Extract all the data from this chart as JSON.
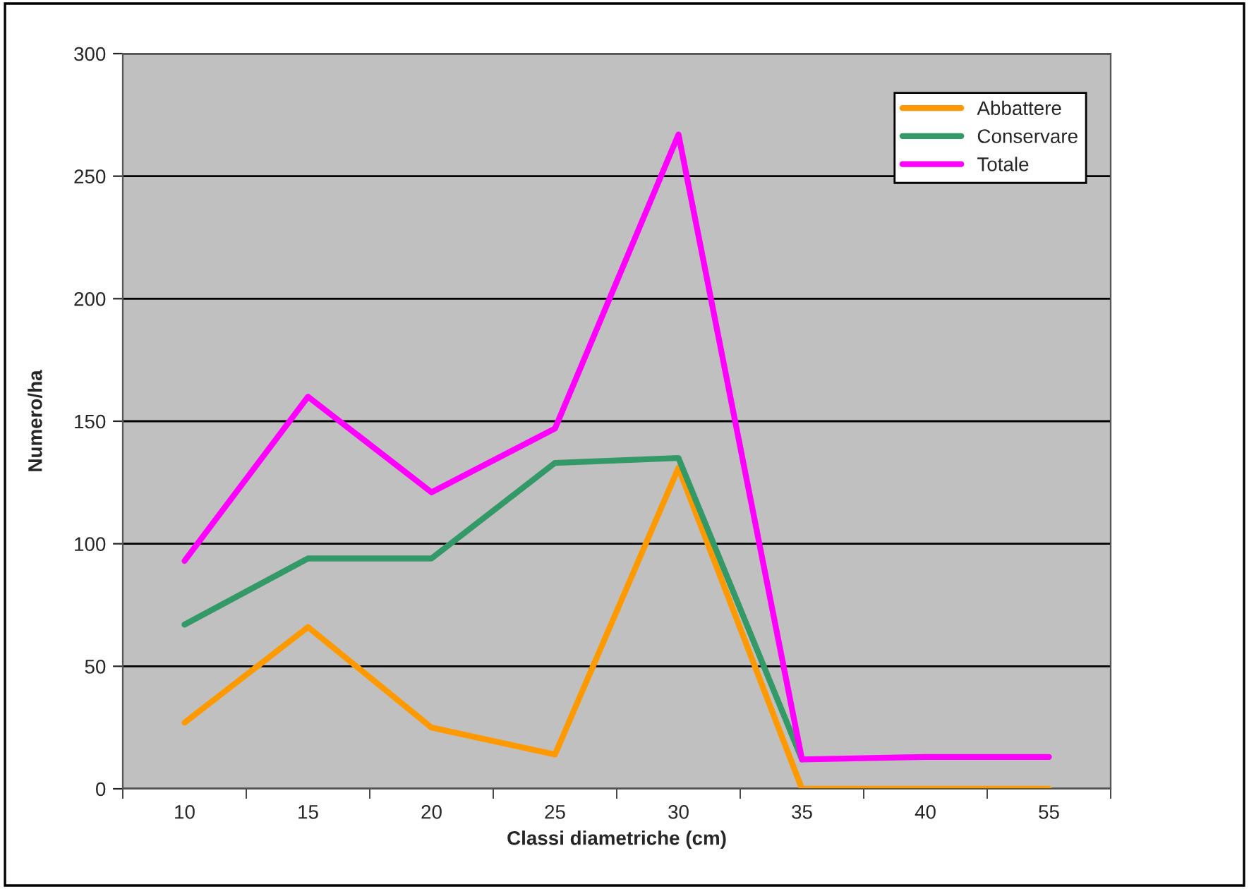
{
  "chart_data": {
    "type": "line",
    "xlabel": "Classi diametriche (cm)",
    "ylabel": "Numero/ha",
    "categories": [
      "10",
      "15",
      "20",
      "25",
      "30",
      "35",
      "40",
      "55"
    ],
    "series": [
      {
        "name": "Abbattere",
        "color": "#ff9900",
        "values": [
          27,
          66,
          25,
          14,
          131,
          0,
          0,
          0
        ]
      },
      {
        "name": "Conservare",
        "color": "#339966",
        "values": [
          67,
          94,
          94,
          133,
          135,
          12,
          null,
          null
        ]
      },
      {
        "name": "Totale",
        "color": "#ff00ff",
        "values": [
          93,
          160,
          121,
          147,
          267,
          12,
          13,
          13
        ]
      }
    ],
    "ylim": [
      0,
      300
    ],
    "yticks": [
      0,
      50,
      100,
      150,
      200,
      250,
      300
    ],
    "grid": "y",
    "legend": "top right",
    "marker": "none",
    "line_style": "solid"
  }
}
